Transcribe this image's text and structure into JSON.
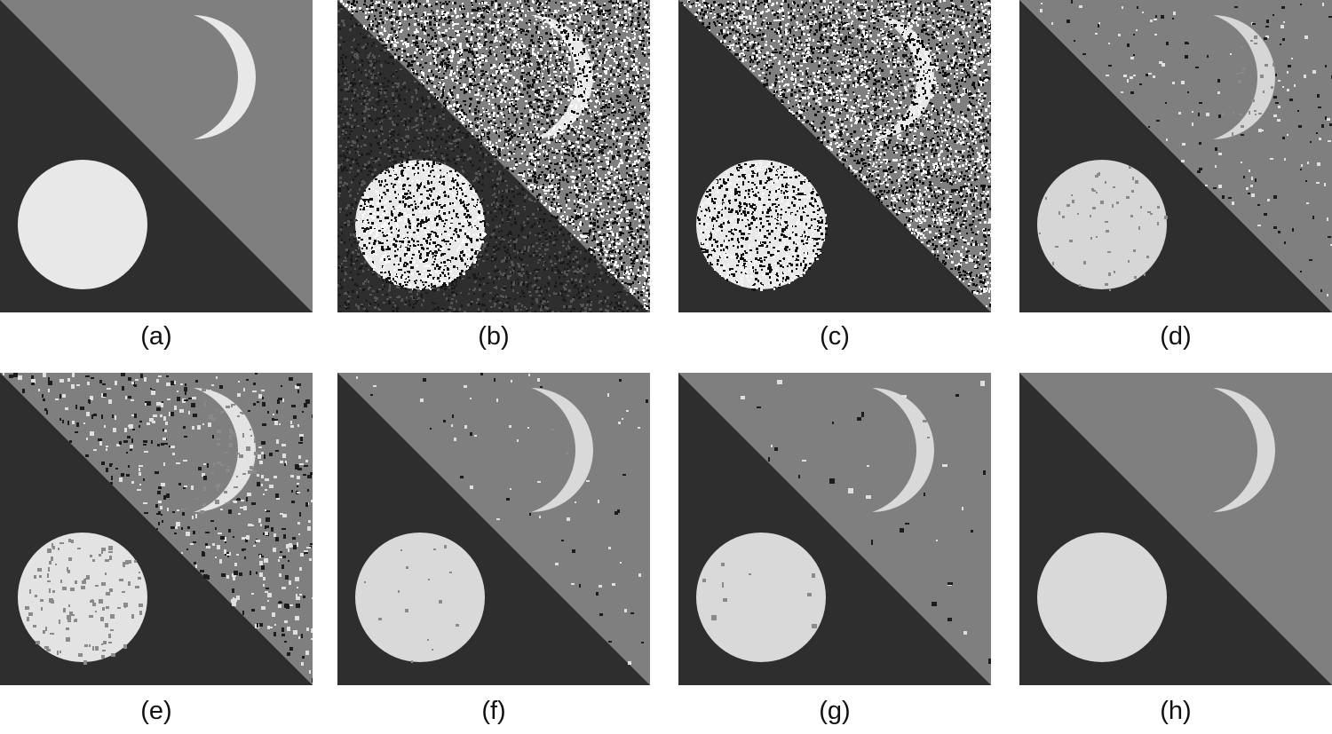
{
  "figure": {
    "panels": [
      {
        "label": "(a)",
        "noise": "none",
        "colors": {
          "dark": "#2e2e2e",
          "mid": "#7f7f7f",
          "light": "#e8e8e8"
        }
      },
      {
        "label": "(b)",
        "noise": "heavy-gaussian",
        "colors": {
          "dark": "#2e2e2e",
          "mid": "#7f7f7f",
          "light": "#e8e8e8"
        }
      },
      {
        "label": "(c)",
        "noise": "heavy-binary",
        "colors": {
          "dark": "#2e2e2e",
          "mid": "#7f7f7f",
          "light": "#e8e8e8"
        }
      },
      {
        "label": "(d)",
        "noise": "light-speckle",
        "colors": {
          "dark": "#2e2e2e",
          "mid": "#7f7f7f",
          "light": "#d6d6d6"
        }
      },
      {
        "label": "(e)",
        "noise": "medium-speckle",
        "colors": {
          "dark": "#2e2e2e",
          "mid": "#7f7f7f",
          "light": "#e3e3e3"
        }
      },
      {
        "label": "(f)",
        "noise": "sparse-speckle",
        "colors": {
          "dark": "#2e2e2e",
          "mid": "#7f7f7f",
          "light": "#d9d9d9"
        }
      },
      {
        "label": "(g)",
        "noise": "few-blotches",
        "colors": {
          "dark": "#2e2e2e",
          "mid": "#7f7f7f",
          "light": "#d9d9d9"
        }
      },
      {
        "label": "(h)",
        "noise": "clean-segmented",
        "colors": {
          "dark": "#2e2e2e",
          "mid": "#7f7f7f",
          "light": "#d9d9d9"
        }
      }
    ]
  }
}
